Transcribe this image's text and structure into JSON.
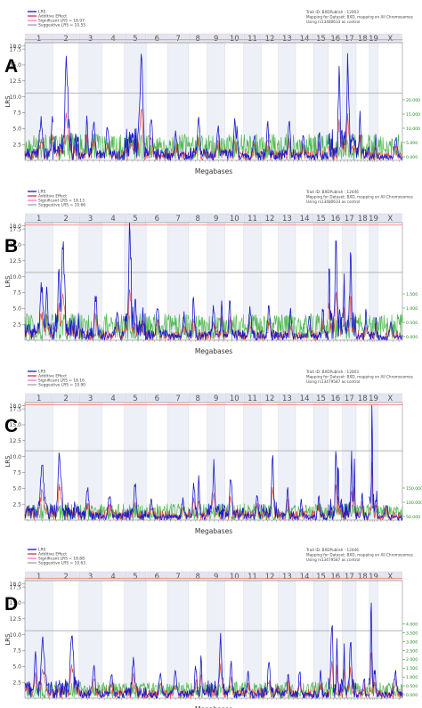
{
  "chart_data": [
    {
      "type": "line",
      "panel_label": "A",
      "legend": [
        "LRS",
        "Additive Effect",
        "Significant LRS = 18.97",
        "Suggestive LRS = 10.55"
      ],
      "info": [
        "Trait ID: BXDPublish : 12003",
        "Mapping for Dataset: BXD, mapping on All Chromosomes",
        "Using rs13480633 as control"
      ],
      "chromosomes": [
        "1",
        "2",
        "3",
        "4",
        "5",
        "6",
        "7",
        "8",
        "9",
        "10",
        "11",
        "12",
        "13",
        "14",
        "15",
        "16",
        "17",
        "18",
        "19",
        "X"
      ],
      "xlabel": "Megabases",
      "ylabel": "LRS",
      "y_ticks": [
        "2.5",
        "5.0",
        "7.5",
        "10.0",
        "12.5",
        "15.0",
        "17.5",
        "18.0"
      ],
      "y_range": [
        0,
        18.5
      ],
      "right_ticks": [
        "0.000",
        "5.000",
        "10.000",
        "15.000",
        "20.000"
      ],
      "significant": 18.97,
      "suggestive": 10.55,
      "peaks": [
        [
          0,
          5.4
        ],
        [
          1,
          13.2
        ],
        [
          2,
          5.2
        ],
        [
          3,
          4.4
        ],
        [
          4,
          15.0
        ],
        [
          5,
          5.7
        ],
        [
          6,
          3.6
        ],
        [
          7,
          5.7
        ],
        [
          8,
          4.6
        ],
        [
          9,
          5.5
        ],
        [
          10,
          3.6
        ],
        [
          11,
          5.2
        ],
        [
          12,
          5.2
        ],
        [
          13,
          3.3
        ],
        [
          14,
          4.0
        ],
        [
          15,
          14.0
        ],
        [
          16,
          13.7
        ],
        [
          17,
          6.2
        ],
        [
          18,
          3.4
        ],
        [
          19,
          2.8
        ]
      ],
      "secondary": [
        [
          0,
          6.4
        ],
        [
          2,
          6.5
        ],
        [
          4,
          6.7
        ],
        [
          9,
          4.9
        ],
        [
          15,
          8.4
        ],
        [
          16,
          10.1
        ]
      ]
    },
    {
      "type": "line",
      "panel_label": "B",
      "legend": [
        "LRS",
        "Additive Effect",
        "Significant LRS = 18.13",
        "Suggestive LRS = 10.66"
      ],
      "info": [
        "Trait ID: BXDPublish : 12446",
        "Mapping for Dataset: BXD, mapping on All Chromosomes",
        "Using rs13480633 as control"
      ],
      "chromosomes": [
        "1",
        "2",
        "3",
        "4",
        "5",
        "6",
        "7",
        "8",
        "9",
        "10",
        "11",
        "12",
        "13",
        "14",
        "15",
        "16",
        "17",
        "18",
        "19",
        "X"
      ],
      "xlabel": "Megabases",
      "ylabel": "LRS",
      "y_ticks": [
        "2.5",
        "5.0",
        "7.5",
        "10.0",
        "12.5",
        "15.0",
        "17.5",
        "18.0"
      ],
      "y_range": [
        0,
        18.5
      ],
      "right_ticks": [
        "0.000",
        "0.500",
        "1.000",
        "1.500"
      ],
      "significant": 18.13,
      "suggestive": 10.66,
      "peaks": [
        [
          0,
          7.5
        ],
        [
          1,
          12.3
        ],
        [
          2,
          5.7
        ],
        [
          3,
          4.0
        ],
        [
          4,
          15.4
        ],
        [
          5,
          4.9
        ],
        [
          6,
          3.4
        ],
        [
          7,
          5.2
        ],
        [
          8,
          4.8
        ],
        [
          9,
          5.0
        ],
        [
          10,
          4.1
        ],
        [
          11,
          4.8
        ],
        [
          12,
          3.8
        ],
        [
          13,
          3.2
        ],
        [
          14,
          4.4
        ],
        [
          15,
          15.2
        ],
        [
          16,
          13.0
        ],
        [
          17,
          4.0
        ],
        [
          18,
          3.8
        ],
        [
          19,
          2.3
        ]
      ],
      "secondary": [
        [
          0,
          7.9
        ],
        [
          1,
          11.2
        ],
        [
          4,
          6.6
        ],
        [
          8,
          6.1
        ],
        [
          15,
          12.6
        ],
        [
          16,
          10.3
        ]
      ]
    },
    {
      "type": "line",
      "panel_label": "C",
      "legend": [
        "LRS",
        "Additive Effect",
        "Significant LRS = 18.16",
        "Suggestive LRS = 10.90"
      ],
      "info": [
        "Trait ID: BXDPublish : 12003",
        "Mapping for Dataset: BXD, mapping on All Chromosomes",
        "Using rs13479587 as control"
      ],
      "chromosomes": [
        "1",
        "2",
        "3",
        "4",
        "5",
        "6",
        "7",
        "8",
        "9",
        "10",
        "11",
        "12",
        "13",
        "14",
        "15",
        "16",
        "17",
        "18",
        "19",
        "X"
      ],
      "xlabel": "Megabases",
      "ylabel": "LRS",
      "y_ticks": [
        "2.5",
        "5.0",
        "7.5",
        "10.0",
        "12.5",
        "15.0",
        "17.5",
        "18.0"
      ],
      "y_range": [
        0,
        18.5
      ],
      "right_ticks": [
        "50.000",
        "100.000",
        "150.000"
      ],
      "significant": 18.16,
      "suggestive": 10.9,
      "peaks": [
        [
          0,
          7.1
        ],
        [
          1,
          8.7
        ],
        [
          2,
          4.1
        ],
        [
          3,
          3.3
        ],
        [
          4,
          5.0
        ],
        [
          5,
          2.7
        ],
        [
          6,
          2.7
        ],
        [
          7,
          4.8
        ],
        [
          8,
          7.6
        ],
        [
          9,
          6.0
        ],
        [
          10,
          3.7
        ],
        [
          11,
          8.6
        ],
        [
          12,
          3.9
        ],
        [
          13,
          2.7
        ],
        [
          14,
          3.8
        ],
        [
          15,
          10.0
        ],
        [
          16,
          8.3
        ],
        [
          17,
          3.8
        ],
        [
          18,
          14.9
        ],
        [
          19,
          2.1
        ]
      ],
      "secondary": [
        [
          0,
          6.6
        ],
        [
          1,
          8.0
        ],
        [
          7,
          6.7
        ],
        [
          15,
          9.1
        ],
        [
          16,
          9.4
        ]
      ]
    },
    {
      "type": "line",
      "panel_label": "D",
      "legend": [
        "LRS",
        "Additive Effect",
        "Significant LRS = 18.88",
        "Suggestive LRS = 10.63"
      ],
      "info": [
        "Trait ID: BXDPublish : 12446",
        "Mapping for Dataset: BXD, mapping on All Chromosomes",
        "Using rs13479587 as control"
      ],
      "chromosomes": [
        "1",
        "2",
        "3",
        "4",
        "5",
        "6",
        "7",
        "8",
        "9",
        "10",
        "11",
        "12",
        "13",
        "14",
        "15",
        "16",
        "17",
        "18",
        "19",
        "X"
      ],
      "xlabel": "Megabases",
      "ylabel": "LRS",
      "y_ticks": [
        "2.5",
        "5.0",
        "7.5",
        "10.0",
        "12.5",
        "15.0",
        "17.5",
        "18.0"
      ],
      "y_range": [
        0,
        18.5
      ],
      "right_ticks": [
        "0.000",
        "0.500",
        "1.000",
        "1.500",
        "2.000",
        "2.500",
        "3.000",
        "3.500",
        "4.000"
      ],
      "significant": 18.88,
      "suggestive": 10.63,
      "peaks": [
        [
          0,
          8.0
        ],
        [
          1,
          8.5
        ],
        [
          2,
          4.1
        ],
        [
          3,
          3.2
        ],
        [
          4,
          5.0
        ],
        [
          5,
          3.0
        ],
        [
          6,
          3.5
        ],
        [
          7,
          4.0
        ],
        [
          8,
          8.0
        ],
        [
          9,
          5.3
        ],
        [
          10,
          3.5
        ],
        [
          11,
          5.4
        ],
        [
          12,
          3.5
        ],
        [
          13,
          3.6
        ],
        [
          14,
          3.5
        ],
        [
          15,
          11.0
        ],
        [
          16,
          8.6
        ],
        [
          17,
          3.0
        ],
        [
          18,
          12.8
        ],
        [
          19,
          3.4
        ]
      ],
      "secondary": [
        [
          0,
          6.9
        ],
        [
          7,
          6.6
        ],
        [
          15,
          9.3
        ],
        [
          16,
          8.1
        ]
      ]
    }
  ]
}
